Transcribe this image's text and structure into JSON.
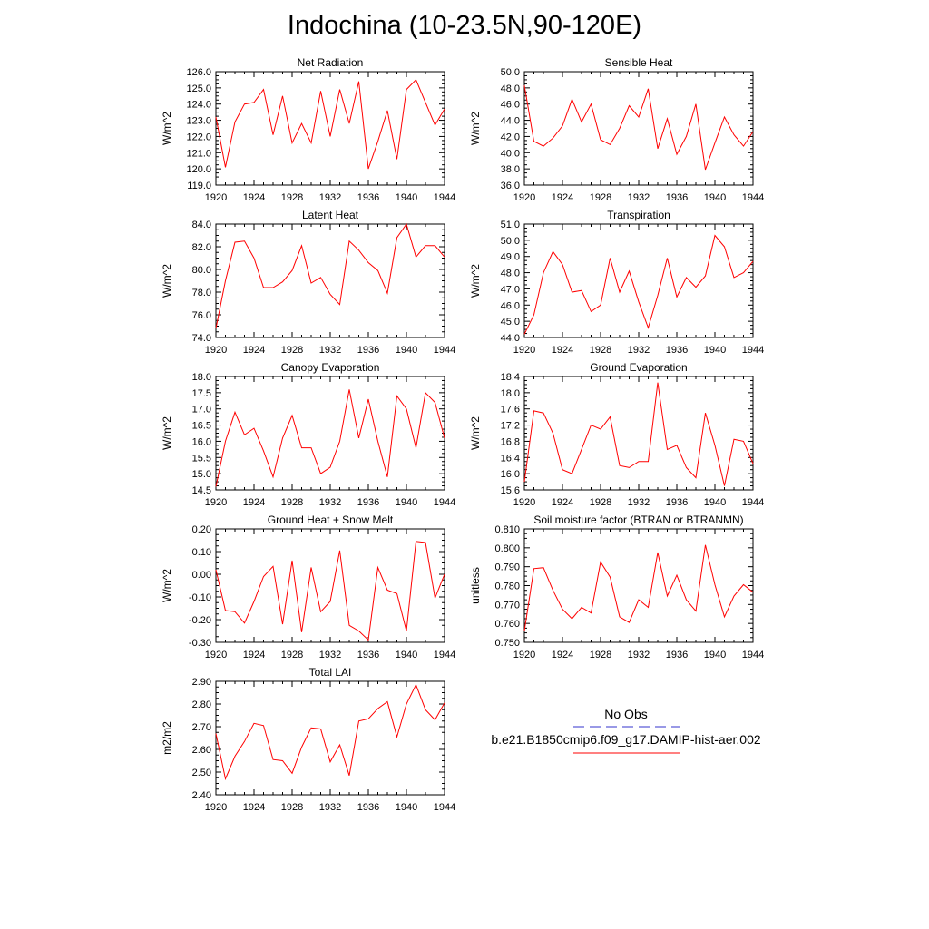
{
  "title": "Indochina (10-23.5N,90-120E)",
  "legend": [
    {
      "label": "No Obs",
      "color": "#3333cc",
      "style": "dashed"
    },
    {
      "label": "b.e21.B1850cmip6.f09_g17.DAMIP-hist-aer.002",
      "color": "#ff0000",
      "style": "solid"
    }
  ],
  "chart_data": [
    {
      "type": "line",
      "title": "Net Radiation",
      "ylabel": "W/m^2",
      "xlim": [
        1920,
        1944
      ],
      "ylim": [
        119.0,
        126.0
      ],
      "xticks": [
        "1920",
        "1924",
        "1928",
        "1932",
        "1936",
        "1940",
        "1944"
      ],
      "yticks": [
        "119.0",
        "120.0",
        "121.0",
        "122.0",
        "123.0",
        "124.0",
        "125.0",
        "126.0"
      ],
      "x": [
        1920,
        1921,
        1922,
        1923,
        1924,
        1925,
        1926,
        1927,
        1928,
        1929,
        1930,
        1931,
        1932,
        1933,
        1934,
        1935,
        1936,
        1937,
        1938,
        1939,
        1940,
        1941,
        1942,
        1943,
        1944
      ],
      "series": [
        {
          "color": "#ff0000",
          "values": [
            123.2,
            120.1,
            122.9,
            124.0,
            124.1,
            124.9,
            122.1,
            124.5,
            121.6,
            122.8,
            121.6,
            124.8,
            122.0,
            124.9,
            122.8,
            125.4,
            120.0,
            121.7,
            123.6,
            120.6,
            124.9,
            125.5,
            124.1,
            122.7,
            123.7
          ]
        }
      ]
    },
    {
      "type": "line",
      "title": "Sensible Heat",
      "ylabel": "W/m^2",
      "xlim": [
        1920,
        1944
      ],
      "ylim": [
        36.0,
        50.0
      ],
      "xticks": [
        "1920",
        "1924",
        "1928",
        "1932",
        "1936",
        "1940",
        "1944"
      ],
      "yticks": [
        "36.0",
        "38.0",
        "40.0",
        "42.0",
        "44.0",
        "46.0",
        "48.0",
        "50.0"
      ],
      "x": [
        1920,
        1921,
        1922,
        1923,
        1924,
        1925,
        1926,
        1927,
        1928,
        1929,
        1930,
        1931,
        1932,
        1933,
        1934,
        1935,
        1936,
        1937,
        1938,
        1939,
        1940,
        1941,
        1942,
        1943,
        1944
      ],
      "series": [
        {
          "color": "#ff0000",
          "values": [
            48.3,
            41.4,
            40.8,
            41.8,
            43.3,
            46.6,
            43.8,
            46.0,
            41.6,
            41.0,
            43.0,
            45.8,
            44.4,
            47.9,
            40.5,
            44.2,
            39.8,
            42.0,
            46.0,
            37.9,
            41.2,
            44.4,
            42.2,
            40.8,
            42.6
          ]
        }
      ]
    },
    {
      "type": "line",
      "title": "Latent Heat",
      "ylabel": "W/m^2",
      "xlim": [
        1920,
        1944
      ],
      "ylim": [
        74.0,
        84.0
      ],
      "xticks": [
        "1920",
        "1924",
        "1928",
        "1932",
        "1936",
        "1940",
        "1944"
      ],
      "yticks": [
        "74.0",
        "76.0",
        "78.0",
        "80.0",
        "82.0",
        "84.0"
      ],
      "x": [
        1920,
        1921,
        1922,
        1923,
        1924,
        1925,
        1926,
        1927,
        1928,
        1929,
        1930,
        1931,
        1932,
        1933,
        1934,
        1935,
        1936,
        1937,
        1938,
        1939,
        1940,
        1941,
        1942,
        1943,
        1944
      ],
      "series": [
        {
          "color": "#ff0000",
          "values": [
            74.8,
            79.0,
            82.4,
            82.5,
            81.0,
            78.4,
            78.4,
            78.9,
            79.9,
            82.1,
            78.8,
            79.3,
            77.8,
            76.9,
            82.5,
            81.7,
            80.6,
            79.9,
            77.9,
            82.8,
            84.0,
            81.1,
            82.1,
            82.1,
            81.1
          ]
        }
      ]
    },
    {
      "type": "line",
      "title": "Transpiration",
      "ylabel": "W/m^2",
      "xlim": [
        1920,
        1944
      ],
      "ylim": [
        44.0,
        51.0
      ],
      "xticks": [
        "1920",
        "1924",
        "1928",
        "1932",
        "1936",
        "1940",
        "1944"
      ],
      "yticks": [
        "44.0",
        "45.0",
        "46.0",
        "47.0",
        "48.0",
        "49.0",
        "50.0",
        "51.0"
      ],
      "x": [
        1920,
        1921,
        1922,
        1923,
        1924,
        1925,
        1926,
        1927,
        1928,
        1929,
        1930,
        1931,
        1932,
        1933,
        1934,
        1935,
        1936,
        1937,
        1938,
        1939,
        1940,
        1941,
        1942,
        1943,
        1944
      ],
      "series": [
        {
          "color": "#ff0000",
          "values": [
            44.2,
            45.4,
            48.0,
            49.3,
            48.5,
            46.8,
            46.9,
            45.6,
            46.0,
            48.9,
            46.8,
            48.1,
            46.2,
            44.6,
            46.6,
            48.9,
            46.5,
            47.7,
            47.1,
            47.8,
            50.3,
            49.6,
            47.7,
            48.0,
            48.7
          ]
        }
      ]
    },
    {
      "type": "line",
      "title": "Canopy Evaporation",
      "ylabel": "W/m^2",
      "xlim": [
        1920,
        1944
      ],
      "ylim": [
        14.5,
        18.0
      ],
      "xticks": [
        "1920",
        "1924",
        "1928",
        "1932",
        "1936",
        "1940",
        "1944"
      ],
      "yticks": [
        "14.5",
        "15.0",
        "15.5",
        "16.0",
        "16.5",
        "17.0",
        "17.5",
        "18.0"
      ],
      "x": [
        1920,
        1921,
        1922,
        1923,
        1924,
        1925,
        1926,
        1927,
        1928,
        1929,
        1930,
        1931,
        1932,
        1933,
        1934,
        1935,
        1936,
        1937,
        1938,
        1939,
        1940,
        1941,
        1942,
        1943,
        1944
      ],
      "series": [
        {
          "color": "#ff0000",
          "values": [
            14.6,
            16.0,
            16.9,
            16.2,
            16.4,
            15.7,
            14.9,
            16.1,
            16.8,
            15.8,
            15.8,
            15.0,
            15.2,
            16.0,
            17.6,
            16.1,
            17.3,
            16.0,
            14.9,
            17.4,
            17.0,
            15.8,
            17.5,
            17.2,
            16.1
          ]
        }
      ]
    },
    {
      "type": "line",
      "title": "Ground Evaporation",
      "ylabel": "W/m^2",
      "xlim": [
        1920,
        1944
      ],
      "ylim": [
        15.6,
        18.4
      ],
      "xticks": [
        "1920",
        "1924",
        "1928",
        "1932",
        "1936",
        "1940",
        "1944"
      ],
      "yticks": [
        "15.6",
        "16.0",
        "16.4",
        "16.8",
        "17.2",
        "17.6",
        "18.0",
        "18.4"
      ],
      "x": [
        1920,
        1921,
        1922,
        1923,
        1924,
        1925,
        1926,
        1927,
        1928,
        1929,
        1930,
        1931,
        1932,
        1933,
        1934,
        1935,
        1936,
        1937,
        1938,
        1939,
        1940,
        1941,
        1942,
        1943,
        1944
      ],
      "series": [
        {
          "color": "#ff0000",
          "values": [
            15.8,
            17.55,
            17.5,
            17.0,
            16.1,
            16.0,
            16.6,
            17.2,
            17.1,
            17.4,
            16.2,
            16.15,
            16.3,
            16.3,
            18.25,
            16.6,
            16.7,
            16.15,
            15.9,
            17.5,
            16.7,
            15.7,
            16.85,
            16.8,
            16.25
          ]
        }
      ]
    },
    {
      "type": "line",
      "title": "Ground Heat + Snow Melt",
      "ylabel": "W/m^2",
      "xlim": [
        1920,
        1944
      ],
      "ylim": [
        -0.3,
        0.2
      ],
      "xticks": [
        "1920",
        "1924",
        "1928",
        "1932",
        "1936",
        "1940",
        "1944"
      ],
      "yticks": [
        "-0.30",
        "-0.20",
        "-0.10",
        "0.00",
        "0.10",
        "0.20"
      ],
      "x": [
        1920,
        1921,
        1922,
        1923,
        1924,
        1925,
        1926,
        1927,
        1928,
        1929,
        1930,
        1931,
        1932,
        1933,
        1934,
        1935,
        1936,
        1937,
        1938,
        1939,
        1940,
        1941,
        1942,
        1943,
        1944
      ],
      "series": [
        {
          "color": "#ff0000",
          "values": [
            0.02,
            -0.16,
            -0.165,
            -0.215,
            -0.12,
            -0.01,
            0.035,
            -0.22,
            0.06,
            -0.255,
            0.03,
            -0.165,
            -0.12,
            0.105,
            -0.225,
            -0.25,
            -0.29,
            0.03,
            -0.07,
            -0.085,
            -0.25,
            0.145,
            0.14,
            -0.105,
            0.0
          ]
        }
      ]
    },
    {
      "type": "line",
      "title": "Soil moisture factor (BTRAN or BTRANMN)",
      "ylabel": "unitless",
      "xlim": [
        1920,
        1944
      ],
      "ylim": [
        0.75,
        0.81
      ],
      "xticks": [
        "1920",
        "1924",
        "1928",
        "1932",
        "1936",
        "1940",
        "1944"
      ],
      "yticks": [
        "0.750",
        "0.760",
        "0.770",
        "0.780",
        "0.790",
        "0.800",
        "0.810"
      ],
      "x": [
        1920,
        1921,
        1922,
        1923,
        1924,
        1925,
        1926,
        1927,
        1928,
        1929,
        1930,
        1931,
        1932,
        1933,
        1934,
        1935,
        1936,
        1937,
        1938,
        1939,
        1940,
        1941,
        1942,
        1943,
        1944
      ],
      "series": [
        {
          "color": "#ff0000",
          "values": [
            0.756,
            0.789,
            0.7895,
            0.7775,
            0.7675,
            0.7625,
            0.7685,
            0.7655,
            0.7925,
            0.7845,
            0.7635,
            0.7605,
            0.7725,
            0.7685,
            0.7975,
            0.7745,
            0.7855,
            0.7725,
            0.7665,
            0.8015,
            0.7805,
            0.7635,
            0.7745,
            0.7805,
            0.7765
          ]
        }
      ]
    },
    {
      "type": "line",
      "title": "Total LAI",
      "ylabel": "m2/m2",
      "xlim": [
        1920,
        1944
      ],
      "ylim": [
        2.4,
        2.9
      ],
      "xticks": [
        "1920",
        "1924",
        "1928",
        "1932",
        "1936",
        "1940",
        "1944"
      ],
      "yticks": [
        "2.40",
        "2.50",
        "2.60",
        "2.70",
        "2.80",
        "2.90"
      ],
      "x": [
        1920,
        1921,
        1922,
        1923,
        1924,
        1925,
        1926,
        1927,
        1928,
        1929,
        1930,
        1931,
        1932,
        1933,
        1934,
        1935,
        1936,
        1937,
        1938,
        1939,
        1940,
        1941,
        1942,
        1943,
        1944
      ],
      "series": [
        {
          "color": "#ff0000",
          "values": [
            2.67,
            2.47,
            2.57,
            2.635,
            2.715,
            2.705,
            2.555,
            2.55,
            2.495,
            2.61,
            2.695,
            2.69,
            2.545,
            2.62,
            2.485,
            2.725,
            2.735,
            2.78,
            2.81,
            2.655,
            2.8,
            2.885,
            2.775,
            2.73,
            2.805
          ]
        }
      ]
    }
  ]
}
